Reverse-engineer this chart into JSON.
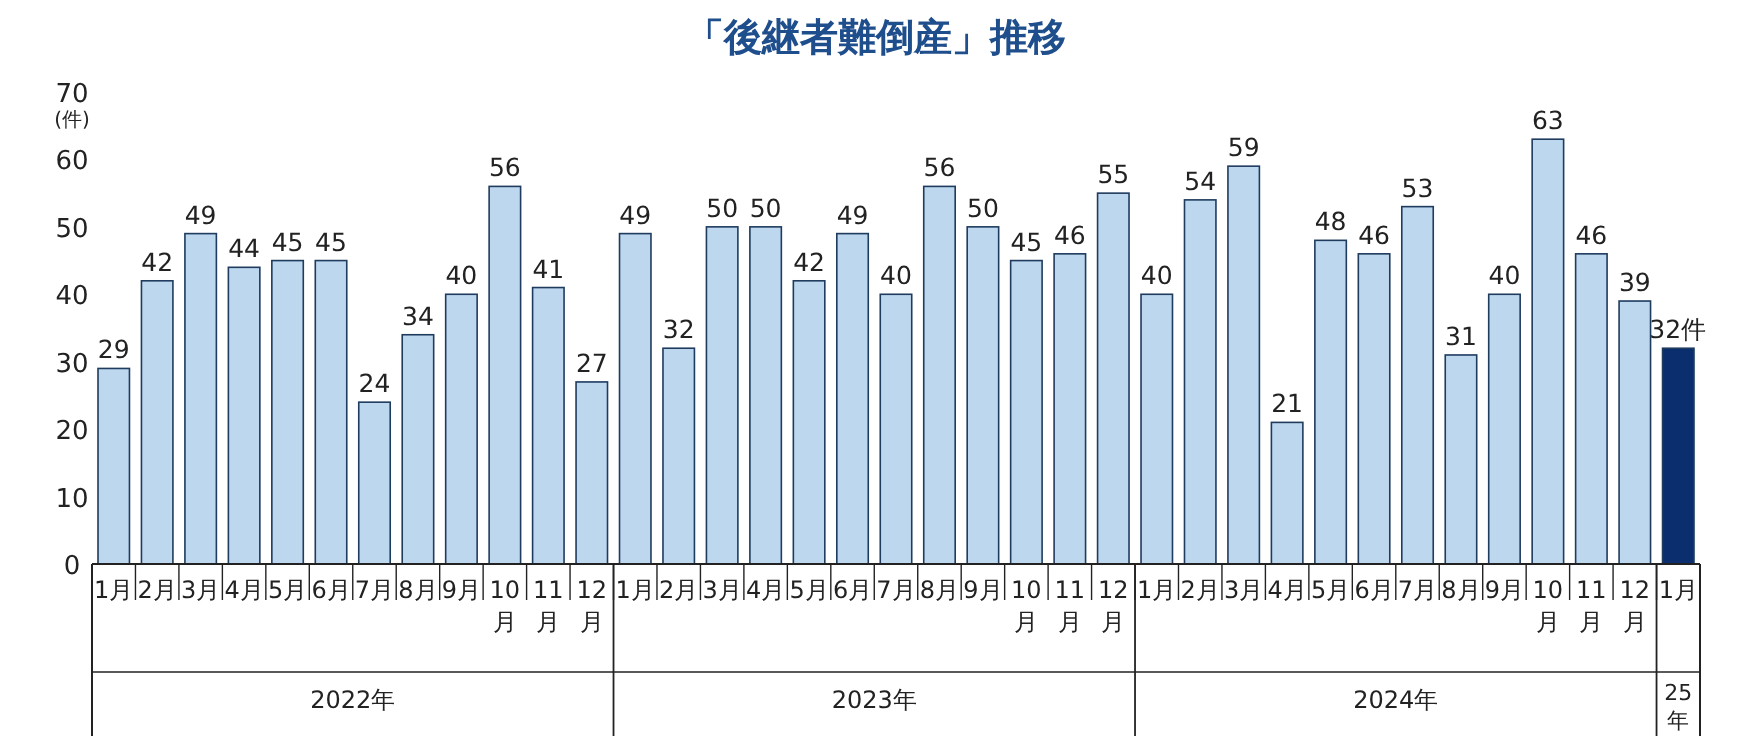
{
  "chart_data": {
    "type": "bar",
    "title": "「後継者難倒産」推移",
    "ylabel": "(件)",
    "categories": [
      "1月",
      "2月",
      "3月",
      "4月",
      "5月",
      "6月",
      "7月",
      "8月",
      "9月",
      "10月",
      "11月",
      "12月",
      "1月",
      "2月",
      "3月",
      "4月",
      "5月",
      "6月",
      "7月",
      "8月",
      "9月",
      "10月",
      "11月",
      "12月",
      "1月",
      "2月",
      "3月",
      "4月",
      "5月",
      "6月",
      "7月",
      "8月",
      "9月",
      "10月",
      "11月",
      "12月",
      "1月"
    ],
    "values": [
      29,
      42,
      49,
      44,
      45,
      45,
      24,
      34,
      40,
      56,
      41,
      27,
      49,
      32,
      50,
      50,
      42,
      49,
      40,
      56,
      50,
      45,
      46,
      55,
      40,
      54,
      59,
      21,
      48,
      46,
      53,
      31,
      40,
      63,
      46,
      39,
      32
    ],
    "colors": [
      "#bdd7ee",
      "#bdd7ee",
      "#bdd7ee",
      "#bdd7ee",
      "#bdd7ee",
      "#bdd7ee",
      "#bdd7ee",
      "#bdd7ee",
      "#bdd7ee",
      "#bdd7ee",
      "#bdd7ee",
      "#bdd7ee",
      "#bdd7ee",
      "#bdd7ee",
      "#bdd7ee",
      "#bdd7ee",
      "#bdd7ee",
      "#bdd7ee",
      "#bdd7ee",
      "#bdd7ee",
      "#bdd7ee",
      "#bdd7ee",
      "#bdd7ee",
      "#bdd7ee",
      "#bdd7ee",
      "#bdd7ee",
      "#bdd7ee",
      "#bdd7ee",
      "#bdd7ee",
      "#bdd7ee",
      "#bdd7ee",
      "#bdd7ee",
      "#bdd7ee",
      "#bdd7ee",
      "#bdd7ee",
      "#bdd7ee",
      "#0b2f6e"
    ],
    "value_labels": [
      "29",
      "42",
      "49",
      "44",
      "45",
      "45",
      "24",
      "34",
      "40",
      "56",
      "41",
      "27",
      "49",
      "32",
      "50",
      "50",
      "42",
      "49",
      "40",
      "56",
      "50",
      "45",
      "46",
      "55",
      "40",
      "54",
      "59",
      "21",
      "48",
      "46",
      "53",
      "31",
      "40",
      "63",
      "46",
      "39",
      "32件"
    ],
    "ylim": [
      0,
      70
    ],
    "yticks": [
      0,
      10,
      20,
      30,
      40,
      50,
      60,
      70
    ],
    "annotations": [
      "2022年",
      "2023年",
      "2024年",
      "25年"
    ]
  }
}
